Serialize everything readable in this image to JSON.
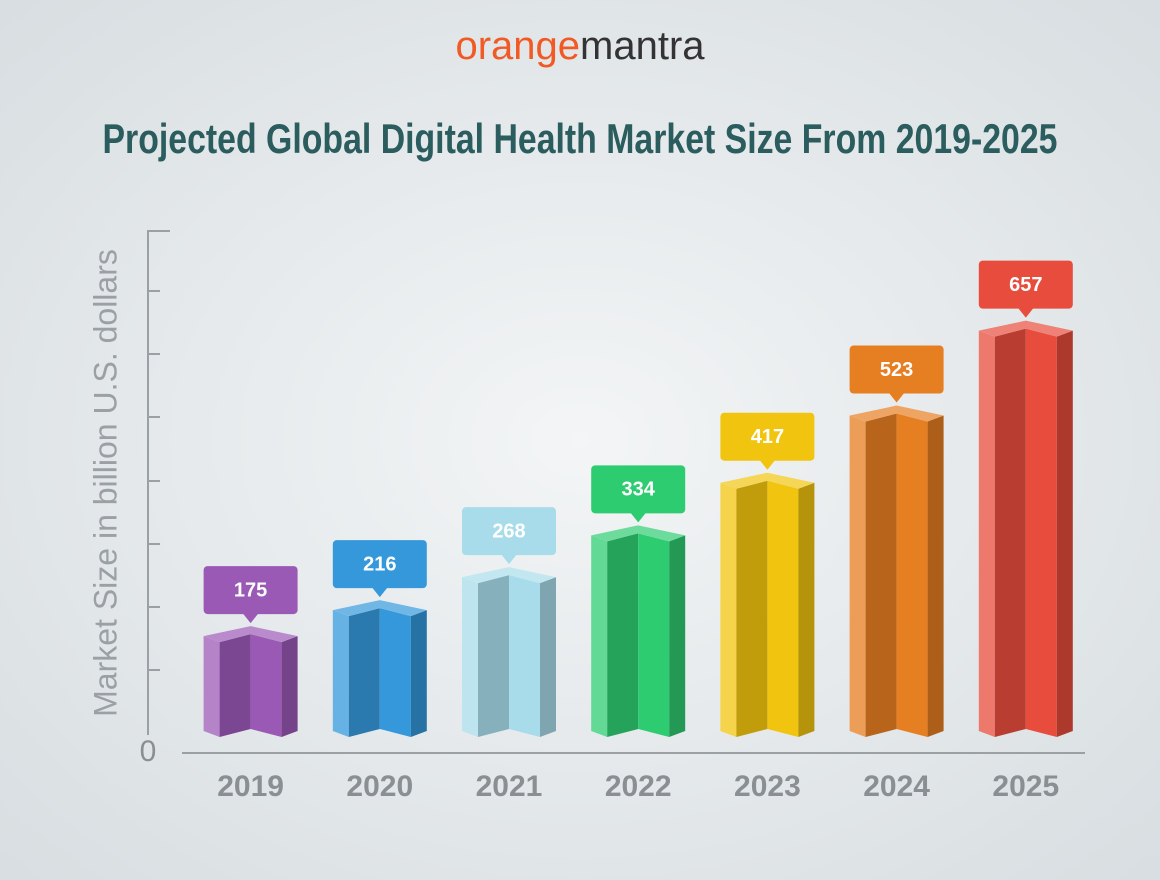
{
  "logo": [
    "orange",
    "mantra"
  ],
  "chart_data": {
    "type": "bar3d",
    "title": "Projected Global Digital Health Market Size From 2019-2025",
    "y_label": "Market Size in billion U.S. dollars",
    "categories": [
      "2019",
      "2020",
      "2021",
      "2022",
      "2023",
      "2024",
      "2025"
    ],
    "values": [
      175,
      216,
      268,
      334,
      417,
      523,
      657
    ],
    "colors": [
      "#9b59b6",
      "#3498db",
      "#a8dcea",
      "#2ecc71",
      "#f1c40f",
      "#e67e22",
      "#e74c3c"
    ],
    "ylim": [
      0,
      800
    ],
    "yticks": [
      0
    ]
  }
}
